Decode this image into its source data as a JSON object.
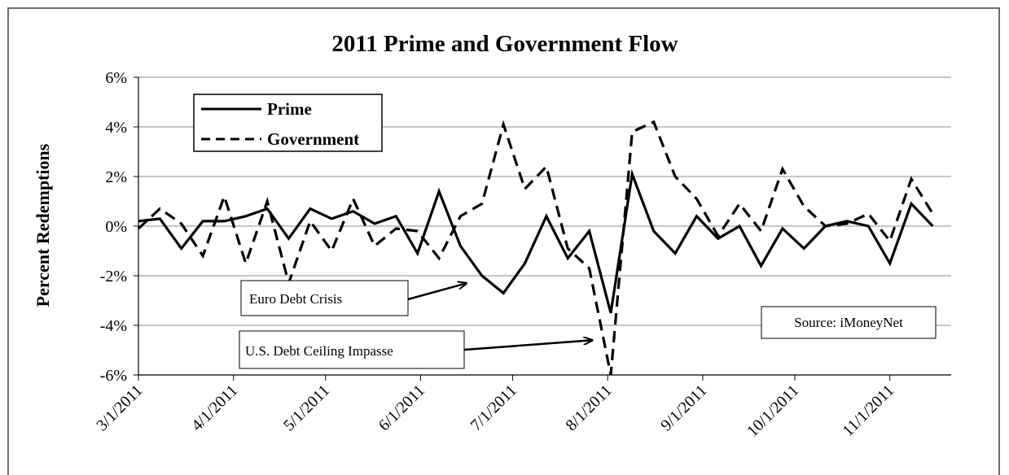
{
  "chart_data": {
    "type": "line",
    "title": "2011 Prime and Government Flow",
    "ylabel": "Percent Redemptions",
    "xlabel": "",
    "ylim": [
      -6,
      6
    ],
    "yticks": [
      -6,
      -4,
      -2,
      0,
      2,
      4,
      6
    ],
    "ytick_labels": [
      "-6%",
      "-4%",
      "-2%",
      "0%",
      "2%",
      "4%",
      "6%"
    ],
    "xlim": [
      "2011-03-01",
      "2011-11-21"
    ],
    "xticks": [
      "2011-03-01",
      "2011-04-01",
      "2011-05-01",
      "2011-06-01",
      "2011-07-01",
      "2011-08-01",
      "2011-09-01",
      "2011-10-01",
      "2011-11-01"
    ],
    "xtick_labels": [
      "3/1/2011",
      "4/1/2011",
      "5/1/2011",
      "6/1/2011",
      "7/1/2011",
      "8/1/2011",
      "9/1/2011",
      "10/1/2011",
      "11/1/2011"
    ],
    "grid": "horizontal",
    "legend": "top-left",
    "series": [
      {
        "name": "Prime",
        "style": "solid",
        "color": "#000000",
        "points": [
          [
            "2011-03-01",
            0.2
          ],
          [
            "2011-03-08",
            0.3
          ],
          [
            "2011-03-15",
            -0.9
          ],
          [
            "2011-03-22",
            0.2
          ],
          [
            "2011-03-29",
            0.2
          ],
          [
            "2011-04-05",
            0.4
          ],
          [
            "2011-04-12",
            0.7
          ],
          [
            "2011-04-19",
            -0.5
          ],
          [
            "2011-04-26",
            0.7
          ],
          [
            "2011-05-03",
            0.3
          ],
          [
            "2011-05-10",
            0.6
          ],
          [
            "2011-05-17",
            0.1
          ],
          [
            "2011-05-24",
            0.4
          ],
          [
            "2011-05-31",
            -1.1
          ],
          [
            "2011-06-07",
            1.4
          ],
          [
            "2011-06-14",
            -0.8
          ],
          [
            "2011-06-21",
            -2.0
          ],
          [
            "2011-06-28",
            -2.7
          ],
          [
            "2011-07-05",
            -1.5
          ],
          [
            "2011-07-12",
            0.4
          ],
          [
            "2011-07-19",
            -1.3
          ],
          [
            "2011-07-26",
            -0.2
          ],
          [
            "2011-08-02",
            -3.5
          ],
          [
            "2011-08-09",
            2.1
          ],
          [
            "2011-08-16",
            -0.2
          ],
          [
            "2011-08-23",
            -1.1
          ],
          [
            "2011-08-30",
            0.4
          ],
          [
            "2011-09-06",
            -0.5
          ],
          [
            "2011-09-13",
            0.0
          ],
          [
            "2011-09-20",
            -1.6
          ],
          [
            "2011-09-27",
            -0.1
          ],
          [
            "2011-10-04",
            -0.9
          ],
          [
            "2011-10-11",
            0.0
          ],
          [
            "2011-10-18",
            0.2
          ],
          [
            "2011-10-25",
            0.0
          ],
          [
            "2011-11-01",
            -1.5
          ],
          [
            "2011-11-08",
            0.9
          ],
          [
            "2011-11-15",
            0.0
          ]
        ]
      },
      {
        "name": "Government",
        "style": "dashed",
        "color": "#000000",
        "points": [
          [
            "2011-03-01",
            -0.1
          ],
          [
            "2011-03-08",
            0.7
          ],
          [
            "2011-03-15",
            0.1
          ],
          [
            "2011-03-22",
            -1.2
          ],
          [
            "2011-03-29",
            1.2
          ],
          [
            "2011-04-05",
            -1.5
          ],
          [
            "2011-04-12",
            1.0
          ],
          [
            "2011-04-19",
            -2.3
          ],
          [
            "2011-04-26",
            0.2
          ],
          [
            "2011-05-03",
            -1.0
          ],
          [
            "2011-05-10",
            1.1
          ],
          [
            "2011-05-17",
            -0.8
          ],
          [
            "2011-05-24",
            -0.1
          ],
          [
            "2011-05-31",
            -0.2
          ],
          [
            "2011-06-07",
            -1.3
          ],
          [
            "2011-06-14",
            0.4
          ],
          [
            "2011-06-21",
            0.9
          ],
          [
            "2011-06-28",
            4.1
          ],
          [
            "2011-07-05",
            1.5
          ],
          [
            "2011-07-12",
            2.4
          ],
          [
            "2011-07-19",
            -0.9
          ],
          [
            "2011-07-26",
            -1.7
          ],
          [
            "2011-08-02",
            -6.0
          ],
          [
            "2011-08-09",
            3.8
          ],
          [
            "2011-08-16",
            4.2
          ],
          [
            "2011-08-23",
            2.0
          ],
          [
            "2011-08-30",
            1.1
          ],
          [
            "2011-09-06",
            -0.4
          ],
          [
            "2011-09-13",
            0.9
          ],
          [
            "2011-09-20",
            -0.2
          ],
          [
            "2011-09-27",
            2.3
          ],
          [
            "2011-10-04",
            0.8
          ],
          [
            "2011-10-11",
            0.0
          ],
          [
            "2011-10-18",
            0.1
          ],
          [
            "2011-10-25",
            0.5
          ],
          [
            "2011-11-01",
            -0.6
          ],
          [
            "2011-11-08",
            1.9
          ],
          [
            "2011-11-15",
            0.5
          ]
        ]
      }
    ],
    "annotations": [
      {
        "text": "Euro Debt Crisis",
        "arrow_to": [
          "2011-06-16",
          -2.3
        ]
      },
      {
        "text": "U.S. Debt Ceiling Impasse",
        "arrow_to": [
          "2011-07-27",
          -4.6
        ]
      },
      {
        "text": "Source: iMoneyNet"
      }
    ]
  }
}
